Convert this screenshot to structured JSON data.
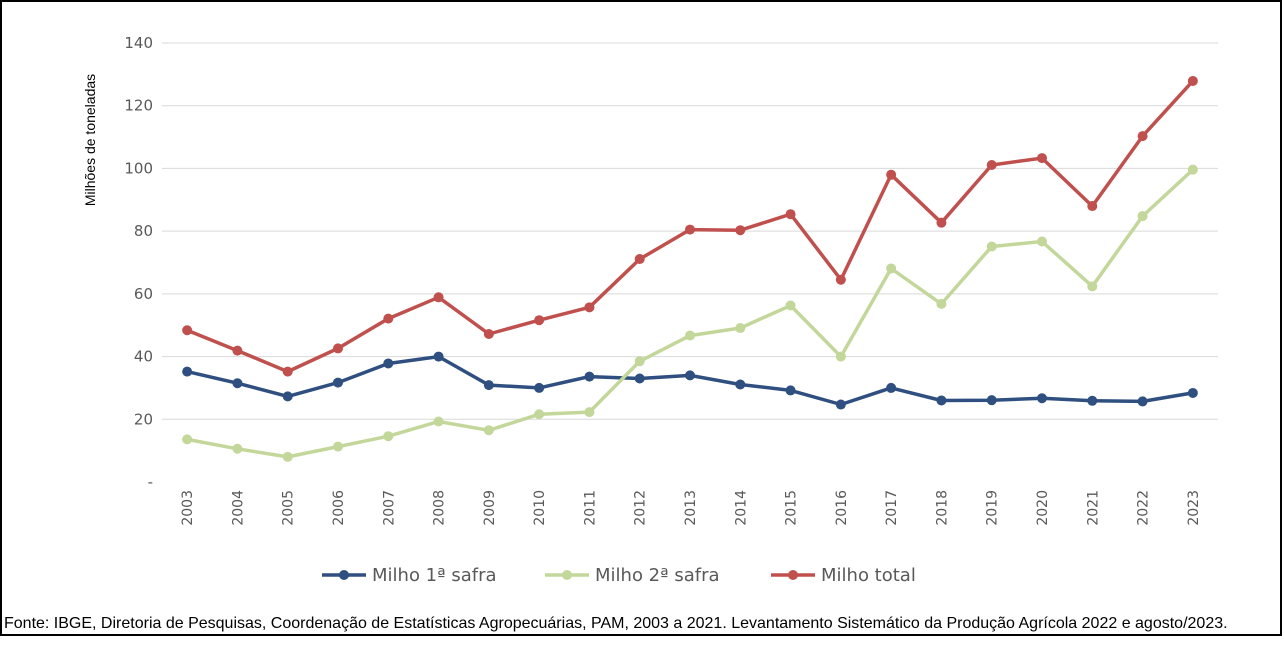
{
  "chart_data": {
    "type": "line",
    "ylabel": "Milhões de toneladas",
    "y_ticks": [
      "-",
      "20",
      "40",
      "60",
      "80",
      "100",
      "120",
      "140"
    ],
    "ylim": [
      0,
      140
    ],
    "grid": true,
    "legend_position": "bottom",
    "categories": [
      "2003",
      "2004",
      "2005",
      "2006",
      "2007",
      "2008",
      "2009",
      "2010",
      "2011",
      "2012",
      "2013",
      "2014",
      "2015",
      "2016",
      "2017",
      "2018",
      "2019",
      "2020",
      "2021",
      "2022",
      "2023"
    ],
    "series": [
      {
        "name": "Milho 1ª safra",
        "color": "#2e4f7f",
        "values": [
          35.2,
          31.5,
          27.3,
          31.7,
          37.8,
          40.0,
          30.9,
          30.0,
          33.6,
          33.0,
          34.0,
          31.1,
          29.2,
          24.7,
          30.0,
          26.0,
          26.1,
          26.7,
          25.9,
          25.7,
          28.4
        ]
      },
      {
        "name": "Milho 2ª safra",
        "color": "#c4d79b",
        "values": [
          13.6,
          10.6,
          8.0,
          11.3,
          14.6,
          19.3,
          16.5,
          21.6,
          22.3,
          38.5,
          46.7,
          49.1,
          56.3,
          40.0,
          68.1,
          56.8,
          75.1,
          76.7,
          62.4,
          84.8,
          99.6
        ]
      },
      {
        "name": "Milho total",
        "color": "#c0504d",
        "values": [
          48.4,
          41.9,
          35.2,
          42.6,
          52.1,
          58.9,
          47.2,
          51.6,
          55.7,
          71.1,
          80.5,
          80.3,
          85.4,
          64.5,
          98.0,
          82.7,
          101.1,
          103.3,
          88.0,
          110.3,
          127.9
        ]
      }
    ]
  },
  "source_note": "Fonte: IBGE, Diretoria de Pesquisas, Coordenação de Estatísticas Agropecuárias, PAM, 2003 a 2021. Levantamento Sistemático da Produção Agrícola 2022 e agosto/2023."
}
